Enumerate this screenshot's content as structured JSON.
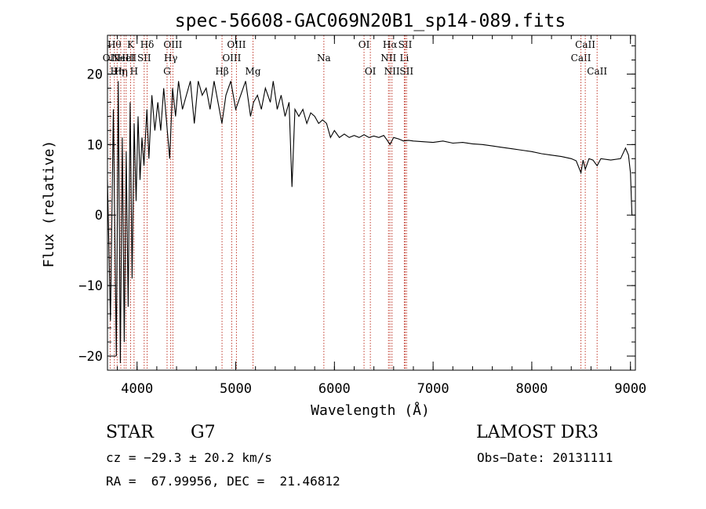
{
  "chart_data": {
    "type": "line",
    "title": "spec-56608-GAC069N20B1_sp14-089.fits",
    "xlabel": "Wavelength (Å)",
    "ylabel": "Flux (relative)",
    "xlim": [
      3700,
      9050
    ],
    "ylim": [
      -22,
      25.5
    ],
    "xticks": [
      4000,
      5000,
      6000,
      7000,
      8000,
      9000
    ],
    "yticks": [
      -20,
      -10,
      0,
      10,
      20
    ],
    "xminor_step": 200,
    "yminor_step": 2,
    "series": [
      {
        "name": "spectrum",
        "points": [
          [
            3700,
            5
          ],
          [
            3730,
            -15
          ],
          [
            3760,
            15
          ],
          [
            3790,
            -20
          ],
          [
            3810,
            19
          ],
          [
            3830,
            -21
          ],
          [
            3850,
            11
          ],
          [
            3870,
            -18
          ],
          [
            3890,
            9
          ],
          [
            3910,
            -13
          ],
          [
            3930,
            16
          ],
          [
            3950,
            -9
          ],
          [
            3970,
            13
          ],
          [
            3990,
            2
          ],
          [
            4010,
            14
          ],
          [
            4030,
            5
          ],
          [
            4050,
            11
          ],
          [
            4070,
            7
          ],
          [
            4100,
            15
          ],
          [
            4120,
            8
          ],
          [
            4150,
            17
          ],
          [
            4180,
            12
          ],
          [
            4210,
            16
          ],
          [
            4240,
            12
          ],
          [
            4270,
            18
          ],
          [
            4300,
            13
          ],
          [
            4330,
            8
          ],
          [
            4360,
            18
          ],
          [
            4390,
            14
          ],
          [
            4420,
            19
          ],
          [
            4460,
            15
          ],
          [
            4500,
            17
          ],
          [
            4540,
            19
          ],
          [
            4580,
            13
          ],
          [
            4620,
            19
          ],
          [
            4660,
            17
          ],
          [
            4700,
            18
          ],
          [
            4740,
            15
          ],
          [
            4780,
            19
          ],
          [
            4820,
            16
          ],
          [
            4860,
            13
          ],
          [
            4900,
            17
          ],
          [
            4950,
            19
          ],
          [
            5000,
            15
          ],
          [
            5050,
            17
          ],
          [
            5100,
            19
          ],
          [
            5150,
            14
          ],
          [
            5180,
            16
          ],
          [
            5220,
            17
          ],
          [
            5260,
            15
          ],
          [
            5300,
            18
          ],
          [
            5350,
            16
          ],
          [
            5380,
            19
          ],
          [
            5420,
            15
          ],
          [
            5460,
            17
          ],
          [
            5500,
            14
          ],
          [
            5540,
            16
          ],
          [
            5570,
            4
          ],
          [
            5600,
            15
          ],
          [
            5640,
            14
          ],
          [
            5680,
            15
          ],
          [
            5720,
            13
          ],
          [
            5760,
            14.5
          ],
          [
            5800,
            14
          ],
          [
            5840,
            13
          ],
          [
            5880,
            13.5
          ],
          [
            5920,
            13
          ],
          [
            5960,
            11
          ],
          [
            6000,
            12
          ],
          [
            6050,
            11
          ],
          [
            6100,
            11.5
          ],
          [
            6150,
            11
          ],
          [
            6200,
            11.3
          ],
          [
            6250,
            11
          ],
          [
            6300,
            11.4
          ],
          [
            6350,
            11
          ],
          [
            6400,
            11.2
          ],
          [
            6450,
            11
          ],
          [
            6500,
            11.3
          ],
          [
            6540,
            10.5
          ],
          [
            6563,
            10
          ],
          [
            6600,
            11
          ],
          [
            6650,
            10.8
          ],
          [
            6700,
            10.5
          ],
          [
            6750,
            10.6
          ],
          [
            6800,
            10.5
          ],
          [
            6900,
            10.4
          ],
          [
            7000,
            10.3
          ],
          [
            7100,
            10.5
          ],
          [
            7200,
            10.2
          ],
          [
            7300,
            10.3
          ],
          [
            7400,
            10.1
          ],
          [
            7500,
            10
          ],
          [
            7600,
            9.8
          ],
          [
            7700,
            9.6
          ],
          [
            7800,
            9.4
          ],
          [
            7900,
            9.2
          ],
          [
            8000,
            9
          ],
          [
            8100,
            8.7
          ],
          [
            8200,
            8.5
          ],
          [
            8300,
            8.3
          ],
          [
            8400,
            8
          ],
          [
            8450,
            7.7
          ],
          [
            8498,
            6
          ],
          [
            8520,
            7.8
          ],
          [
            8542,
            6.5
          ],
          [
            8580,
            8
          ],
          [
            8620,
            7.8
          ],
          [
            8662,
            7
          ],
          [
            8700,
            8
          ],
          [
            8800,
            7.8
          ],
          [
            8900,
            8
          ],
          [
            8950,
            9.5
          ],
          [
            8980,
            8.5
          ],
          [
            9000,
            6
          ],
          [
            9015,
            0
          ]
        ]
      }
    ],
    "spectral_lines": [
      {
        "wavelength": 3727,
        "label": "OII",
        "row": 2
      },
      {
        "wavelength": 3770,
        "label": "Hθ",
        "row": 1
      },
      {
        "wavelength": 3798,
        "label": "Hη",
        "row": 3
      },
      {
        "wavelength": 3835,
        "label": "Hη",
        "row": 3
      },
      {
        "wavelength": 3869,
        "label": "NeIII",
        "row": 2
      },
      {
        "wavelength": 3889,
        "label": "HeI",
        "row": 2
      },
      {
        "wavelength": 3934,
        "label": "K",
        "row": 1
      },
      {
        "wavelength": 3969,
        "label": "H",
        "row": 3
      },
      {
        "wavelength": 4072,
        "label": "SII",
        "row": 2
      },
      {
        "wavelength": 4102,
        "label": "Hδ",
        "row": 1
      },
      {
        "wavelength": 4304,
        "label": "G",
        "row": 3
      },
      {
        "wavelength": 4341,
        "label": "Hγ",
        "row": 2
      },
      {
        "wavelength": 4363,
        "label": "OIII",
        "row": 1
      },
      {
        "wavelength": 4861,
        "label": "Hβ",
        "row": 3
      },
      {
        "wavelength": 4959,
        "label": "OIII",
        "row": 2
      },
      {
        "wavelength": 5007,
        "label": "OIII",
        "row": 1
      },
      {
        "wavelength": 5175,
        "label": "Mg",
        "row": 3
      },
      {
        "wavelength": 5893,
        "label": "Na",
        "row": 2
      },
      {
        "wavelength": 6300,
        "label": "OI",
        "row": 1
      },
      {
        "wavelength": 6364,
        "label": "OI",
        "row": 3
      },
      {
        "wavelength": 6548,
        "label": "NII",
        "row": 2
      },
      {
        "wavelength": 6563,
        "label": "Hα",
        "row": 1
      },
      {
        "wavelength": 6583,
        "label": "NII",
        "row": 3
      },
      {
        "wavelength": 6708,
        "label": "Li",
        "row": 2
      },
      {
        "wavelength": 6717,
        "label": "SII",
        "row": 1
      },
      {
        "wavelength": 6731,
        "label": "SII",
        "row": 3
      },
      {
        "wavelength": 8498,
        "label": "CaII",
        "row": 2
      },
      {
        "wavelength": 8542,
        "label": "CaII",
        "row": 1
      },
      {
        "wavelength": 8662,
        "label": "CaII",
        "row": 3
      }
    ]
  },
  "info": {
    "class": "STAR",
    "subclass": "G7",
    "survey": "LAMOST DR3",
    "cz": "cz = −29.3 ± 20.2 km/s",
    "obs_date": "Obs−Date: 20131111",
    "radec": "RA =  67.99956, DEC =  21.46812"
  }
}
